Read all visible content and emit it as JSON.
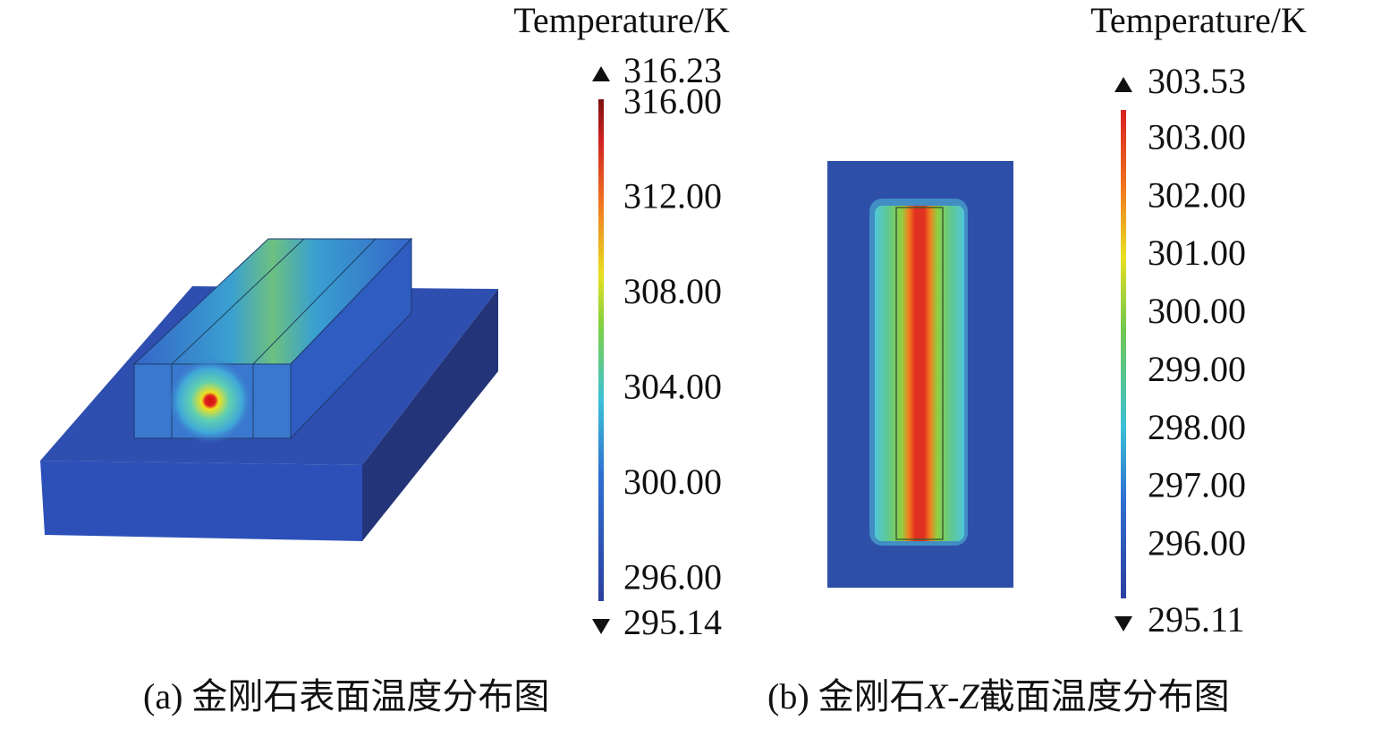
{
  "panels": [
    {
      "caption": [
        {
          "text": "(a) 金刚石表面温度分布图",
          "italic": false
        }
      ],
      "colorbar": {
        "title": "Temperature/K",
        "max": {
          "value": 316.23,
          "label": "316.23"
        },
        "min": {
          "value": 295.14,
          "label": "295.14"
        },
        "ticks": [
          {
            "value": 316,
            "label": "316.00"
          },
          {
            "value": 312,
            "label": "312.00"
          },
          {
            "value": 308,
            "label": "308.00"
          },
          {
            "value": 304,
            "label": "304.00"
          },
          {
            "value": 300,
            "label": "300.00"
          },
          {
            "value": 296,
            "label": "296.00"
          }
        ]
      }
    },
    {
      "caption": [
        {
          "text": "(b) 金刚石",
          "italic": false
        },
        {
          "text": "X-Z",
          "italic": true
        },
        {
          "text": "截面温度分布图",
          "italic": false
        }
      ],
      "colorbar": {
        "title": "Temperature/K",
        "max": {
          "value": 303.53,
          "label": "303.53"
        },
        "min": {
          "value": 295.11,
          "label": "295.11"
        },
        "ticks": [
          {
            "value": 303,
            "label": "303.00"
          },
          {
            "value": 302,
            "label": "302.00"
          },
          {
            "value": 301,
            "label": "301.00"
          },
          {
            "value": 300,
            "label": "300.00"
          },
          {
            "value": 299,
            "label": "299.00"
          },
          {
            "value": 298,
            "label": "298.00"
          },
          {
            "value": 297,
            "label": "297.00"
          },
          {
            "value": 296,
            "label": "296.00"
          }
        ]
      }
    }
  ]
}
